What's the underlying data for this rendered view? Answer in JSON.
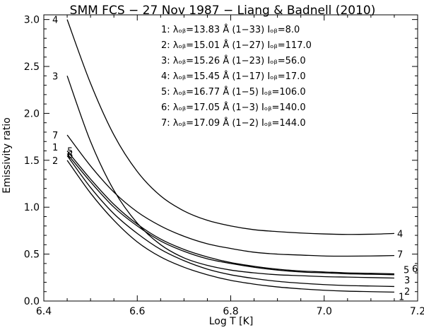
{
  "chart_data": {
    "type": "line",
    "title": "SMM FCS − 27 Nov 1987 − Liang & Badnell (2010)",
    "xlabel": "Log T [K]",
    "ylabel": "Emissivity ratio",
    "xlim": [
      6.4,
      7.2
    ],
    "ylim": [
      0.0,
      3.05
    ],
    "xticks": [
      "6.4",
      "6.6",
      "6.8",
      "7.0",
      "7.2"
    ],
    "yticks": [
      "0.0",
      "0.5",
      "1.0",
      "1.5",
      "2.0",
      "2.5",
      "3.0"
    ],
    "grid": false,
    "legend": [
      {
        "id": "1",
        "text": "1: λₒᵦ=13.83 Å (1−33)   Iₒᵦ=8.0"
      },
      {
        "id": "2",
        "text": "2: λₒᵦ=15.01 Å (1−27)   Iₒᵦ=117.0"
      },
      {
        "id": "3",
        "text": "3: λₒᵦ=15.26 Å (1−23)   Iₒᵦ=56.0"
      },
      {
        "id": "4",
        "text": "4: λₒᵦ=15.45 Å (1−17)   Iₒᵦ=17.0"
      },
      {
        "id": "5",
        "text": "5: λₒᵦ=16.77 Å (1−5)   Iₒᵦ=106.0"
      },
      {
        "id": "6",
        "text": "6: λₒᵦ=17.05 Å (1−3)   Iₒᵦ=140.0"
      },
      {
        "id": "7",
        "text": "7: λₒᵦ=17.09 Å (1−2)   Iₒᵦ=144.0"
      }
    ],
    "series": [
      {
        "name": "1",
        "x": [
          6.45,
          6.5,
          6.55,
          6.6,
          6.65,
          6.7,
          6.75,
          6.8,
          6.85,
          6.9,
          6.95,
          7.0,
          7.05,
          7.1,
          7.15
        ],
        "y": [
          1.5,
          1.15,
          0.86,
          0.63,
          0.47,
          0.36,
          0.28,
          0.22,
          0.18,
          0.15,
          0.13,
          0.115,
          0.105,
          0.1,
          0.095
        ]
      },
      {
        "name": "2",
        "x": [
          6.45,
          6.5,
          6.55,
          6.6,
          6.65,
          6.7,
          6.75,
          6.8,
          6.85,
          6.9,
          6.95,
          7.0,
          7.05,
          7.1,
          7.15
        ],
        "y": [
          1.55,
          1.21,
          0.93,
          0.72,
          0.55,
          0.43,
          0.34,
          0.28,
          0.24,
          0.21,
          0.19,
          0.175,
          0.165,
          0.16,
          0.155
        ]
      },
      {
        "name": "3",
        "x": [
          6.45,
          6.5,
          6.55,
          6.6,
          6.65,
          6.7,
          6.75,
          6.8,
          6.85,
          6.9,
          6.95,
          7.0,
          7.05,
          7.1,
          7.15
        ],
        "y": [
          2.4,
          1.7,
          1.18,
          0.83,
          0.6,
          0.46,
          0.38,
          0.33,
          0.3,
          0.28,
          0.27,
          0.26,
          0.255,
          0.25,
          0.245
        ]
      },
      {
        "name": "4",
        "x": [
          6.45,
          6.5,
          6.55,
          6.6,
          6.65,
          6.7,
          6.75,
          6.8,
          6.85,
          6.9,
          6.95,
          7.0,
          7.05,
          7.1,
          7.15
        ],
        "y": [
          3.0,
          2.32,
          1.77,
          1.38,
          1.12,
          0.96,
          0.86,
          0.8,
          0.76,
          0.74,
          0.725,
          0.715,
          0.71,
          0.712,
          0.72
        ]
      },
      {
        "name": "5",
        "x": [
          6.45,
          6.5,
          6.55,
          6.6,
          6.65,
          6.7,
          6.75,
          6.8,
          6.85,
          6.9,
          6.95,
          7.0,
          7.05,
          7.1,
          7.15
        ],
        "y": [
          1.57,
          1.27,
          1.0,
          0.8,
          0.64,
          0.53,
          0.45,
          0.4,
          0.36,
          0.33,
          0.31,
          0.3,
          0.29,
          0.285,
          0.28
        ]
      },
      {
        "name": "6",
        "x": [
          6.45,
          6.5,
          6.55,
          6.6,
          6.65,
          6.7,
          6.75,
          6.8,
          6.85,
          6.9,
          6.95,
          7.0,
          7.05,
          7.1,
          7.15
        ],
        "y": [
          1.6,
          1.3,
          1.03,
          0.82,
          0.66,
          0.55,
          0.47,
          0.41,
          0.37,
          0.34,
          0.32,
          0.31,
          0.3,
          0.295,
          0.29
        ]
      },
      {
        "name": "7",
        "x": [
          6.45,
          6.5,
          6.55,
          6.6,
          6.65,
          6.7,
          6.75,
          6.8,
          6.85,
          6.9,
          6.95,
          7.0,
          7.05,
          7.1,
          7.15
        ],
        "y": [
          1.77,
          1.44,
          1.16,
          0.95,
          0.8,
          0.69,
          0.61,
          0.56,
          0.52,
          0.5,
          0.49,
          0.48,
          0.478,
          0.48,
          0.485
        ]
      }
    ],
    "left_labels": [
      {
        "text": "4",
        "y": 3.0
      },
      {
        "text": "3",
        "y": 2.4
      },
      {
        "text": "7",
        "y": 1.77
      },
      {
        "text": "1",
        "y": 1.64
      },
      {
        "text": "2",
        "y": 1.5
      },
      {
        "text": "5",
        "y": 1.6
      },
      {
        "text": "6",
        "y": 1.56
      }
    ],
    "right_labels": [
      {
        "text": "4",
        "y": 0.72
      },
      {
        "text": "7",
        "y": 0.5
      },
      {
        "text": "5",
        "y": 0.32
      },
      {
        "text": "6",
        "y": 0.325
      },
      {
        "text": "3",
        "y": 0.255
      },
      {
        "text": "2",
        "y": 0.16
      },
      {
        "text": "1",
        "y": 0.095
      }
    ]
  }
}
